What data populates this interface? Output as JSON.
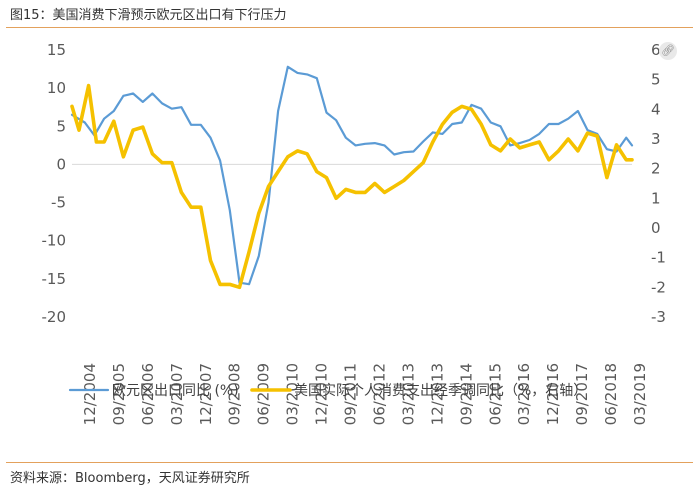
{
  "header": {
    "title": "图15：美国消费下滑预示欧元区出口有下行压力"
  },
  "footer": {
    "source": "资料来源：Bloomberg，天风证券研究所"
  },
  "icons": {
    "corner": "link-icon"
  },
  "colors": {
    "blue": "#5b9bd5",
    "yellow": "#f5c100",
    "axis": "#d9d9d9",
    "rule": "#e3a15c"
  },
  "chart_data": {
    "type": "line",
    "title": "",
    "xlabel": "",
    "x_tick_labels": [
      "12/2004",
      "09/2005",
      "06/2006",
      "03/2007",
      "12/2007",
      "09/2008",
      "06/2009",
      "03/2010",
      "12/2010",
      "09/2011",
      "06/2012",
      "03/2013",
      "12/2013",
      "09/2014",
      "06/2015",
      "03/2016",
      "12/2016",
      "09/2017",
      "06/2018",
      "03/2019"
    ],
    "y_left": {
      "label": "",
      "range": [
        -20,
        15
      ],
      "ticks": [
        15,
        10,
        5,
        0,
        -5,
        -10,
        -15,
        -20
      ]
    },
    "y_right": {
      "label": "",
      "range": [
        -3,
        6
      ],
      "ticks": [
        "6",
        "5",
        "4",
        "3",
        "2",
        "1",
        "0",
        "-1",
        "-2",
        "-3"
      ]
    },
    "legend": {
      "placement": "bottom"
    },
    "series": [
      {
        "name": "欧元区出口同比 (%)",
        "axis": "left",
        "color": "#5b9bd5",
        "x": [
          2004.92,
          2005.25,
          2005.5,
          2005.75,
          2006.0,
          2006.25,
          2006.5,
          2006.75,
          2007.0,
          2007.25,
          2007.5,
          2007.75,
          2008.0,
          2008.25,
          2008.5,
          2008.75,
          2009.0,
          2009.25,
          2009.5,
          2009.75,
          2010.0,
          2010.25,
          2010.5,
          2010.75,
          2011.0,
          2011.25,
          2011.5,
          2011.75,
          2012.0,
          2012.25,
          2012.5,
          2012.75,
          2013.0,
          2013.25,
          2013.5,
          2013.75,
          2014.0,
          2014.25,
          2014.5,
          2014.75,
          2015.0,
          2015.25,
          2015.5,
          2015.75,
          2016.0,
          2016.25,
          2016.5,
          2016.75,
          2017.0,
          2017.25,
          2017.5,
          2017.75,
          2018.0,
          2018.25,
          2018.5,
          2018.75,
          2019.0,
          2019.25,
          2019.4
        ],
        "values": [
          6.5,
          5.5,
          3.8,
          6.0,
          7.0,
          9.0,
          9.3,
          8.2,
          9.3,
          8.0,
          7.3,
          7.5,
          5.2,
          5.2,
          3.5,
          0.5,
          -6.0,
          -15.5,
          -15.7,
          -12.0,
          -5.0,
          7.0,
          12.8,
          12.0,
          11.8,
          11.3,
          6.8,
          5.8,
          3.5,
          2.5,
          2.7,
          2.8,
          2.5,
          1.3,
          1.6,
          1.7,
          3.0,
          4.2,
          4.0,
          5.3,
          5.5,
          7.8,
          7.3,
          5.5,
          5.0,
          2.5,
          2.8,
          3.2,
          4.0,
          5.3,
          5.3,
          6.0,
          7.0,
          4.5,
          4.0,
          2.0,
          1.7,
          3.5,
          2.5
        ]
      },
      {
        "name": "美国实际个人消费支出经季调同比（%，右轴）",
        "axis": "right",
        "color": "#f5c100",
        "x": [
          2004.92,
          2005.1,
          2005.35,
          2005.55,
          2005.75,
          2006.0,
          2006.25,
          2006.5,
          2006.75,
          2007.0,
          2007.25,
          2007.5,
          2007.75,
          2008.0,
          2008.25,
          2008.5,
          2008.75,
          2009.0,
          2009.25,
          2009.5,
          2009.75,
          2010.0,
          2010.25,
          2010.5,
          2010.75,
          2011.0,
          2011.25,
          2011.5,
          2011.75,
          2012.0,
          2012.25,
          2012.5,
          2012.75,
          2013.0,
          2013.25,
          2013.5,
          2013.75,
          2014.0,
          2014.25,
          2014.5,
          2014.75,
          2015.0,
          2015.25,
          2015.5,
          2015.75,
          2016.0,
          2016.25,
          2016.5,
          2016.75,
          2017.0,
          2017.25,
          2017.5,
          2017.75,
          2018.0,
          2018.25,
          2018.5,
          2018.75,
          2019.0,
          2019.25,
          2019.4
        ],
        "values": [
          4.1,
          3.3,
          4.8,
          2.9,
          2.9,
          3.6,
          2.4,
          3.3,
          3.4,
          2.5,
          2.2,
          2.2,
          1.2,
          0.7,
          0.7,
          -1.1,
          -1.9,
          -1.9,
          -2.0,
          -0.8,
          0.5,
          1.4,
          1.9,
          2.4,
          2.6,
          2.5,
          1.9,
          1.7,
          1.0,
          1.3,
          1.2,
          1.2,
          1.5,
          1.2,
          1.4,
          1.6,
          1.9,
          2.2,
          2.9,
          3.5,
          3.9,
          4.1,
          4.0,
          3.5,
          2.8,
          2.6,
          3.0,
          2.7,
          2.8,
          2.9,
          2.3,
          2.6,
          3.0,
          2.6,
          3.2,
          3.1,
          1.7,
          2.8,
          2.3,
          2.3
        ]
      }
    ]
  }
}
